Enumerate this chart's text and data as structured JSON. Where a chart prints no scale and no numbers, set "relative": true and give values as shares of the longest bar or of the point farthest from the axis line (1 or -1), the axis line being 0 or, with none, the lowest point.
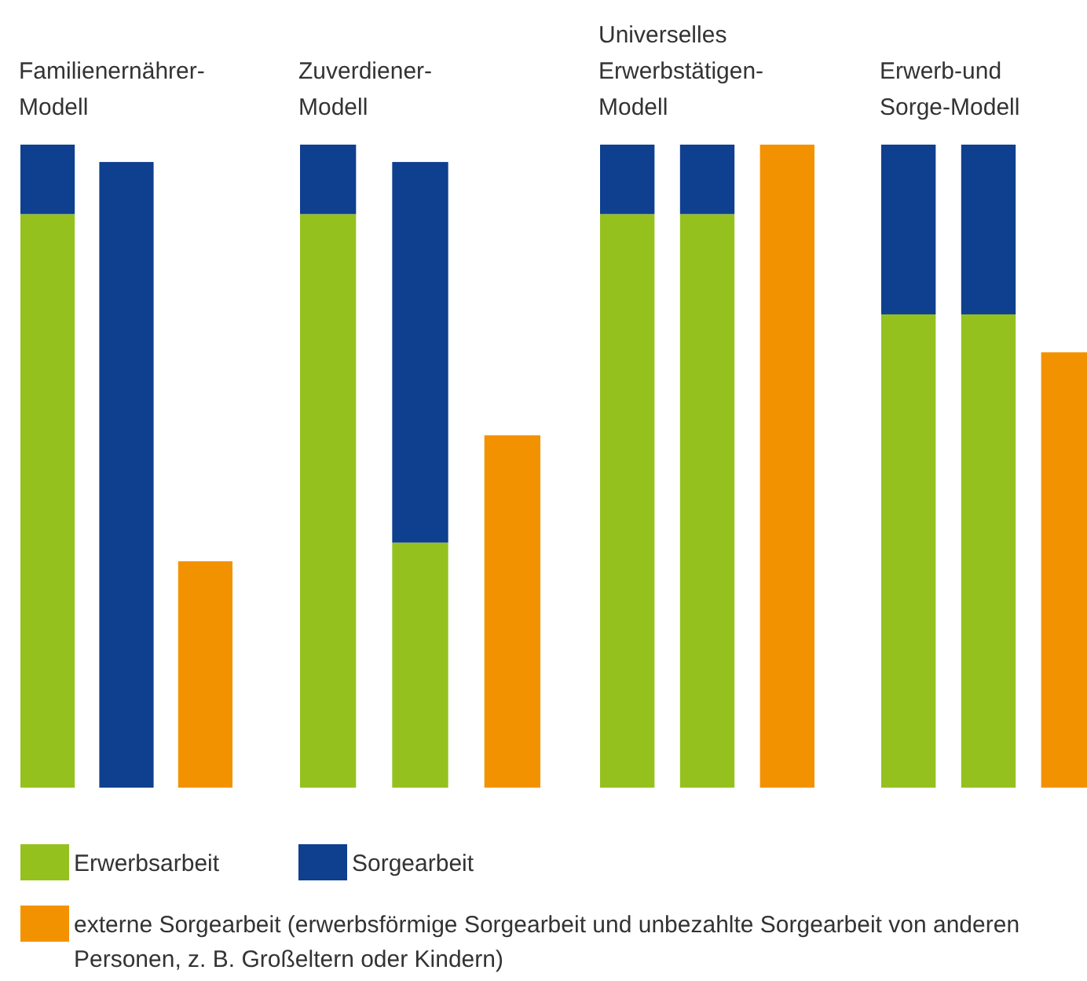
{
  "chart_data": [
    {
      "type": "bar",
      "title": "Familienernährer-\nModell",
      "categories": [
        null,
        null,
        null
      ],
      "stacked": true,
      "relative": true,
      "series": [
        {
          "color": "#95c11f",
          "values": [
            0.892,
            null,
            null
          ]
        },
        {
          "color": "#0f3f8f",
          "values": [
            0.108,
            0.973,
            null
          ]
        },
        {
          "color": "#f39200",
          "values": [
            null,
            null,
            0.352
          ]
        }
      ]
    },
    {
      "type": "bar",
      "title": "Zuverdiener-\nModell",
      "categories": [
        null,
        null,
        null
      ],
      "stacked": true,
      "relative": true,
      "series": [
        {
          "color": "#95c11f",
          "values": [
            0.892,
            0.381,
            null
          ]
        },
        {
          "color": "#0f3f8f",
          "values": [
            0.108,
            0.592,
            null
          ]
        },
        {
          "color": "#f39200",
          "values": [
            null,
            null,
            0.548
          ]
        }
      ]
    },
    {
      "type": "bar",
      "title": "Universelles\nErwerbstätigen-\nModell",
      "categories": [
        null,
        null,
        null
      ],
      "stacked": true,
      "relative": true,
      "series": [
        {
          "color": "#95c11f",
          "values": [
            0.892,
            0.892,
            null
          ]
        },
        {
          "color": "#0f3f8f",
          "values": [
            0.108,
            0.108,
            null
          ]
        },
        {
          "color": "#f39200",
          "values": [
            null,
            null,
            1
          ]
        }
      ]
    },
    {
      "type": "bar",
      "title": "Erwerb-und\nSorge-Modell",
      "categories": [
        null,
        null,
        null
      ],
      "stacked": true,
      "relative": true,
      "legend": "bottom",
      "series": [
        {
          "name": "Erwerbsarbeit",
          "color": "#95c11f",
          "values": [
            0.736,
            0.736,
            null
          ]
        },
        {
          "name": "Sorgearbeit",
          "color": "#0f3f8f",
          "values": [
            0.264,
            0.264,
            null
          ]
        },
        {
          "name": "externe Sorgearbeit (erwerbsförmige Sorgearbeit und unbezahlte Sorgearbeit von anderen Personen, z. B. Großeltern oder Kindern)",
          "color": "#f39200",
          "values": [
            null,
            null,
            0.677
          ]
        }
      ]
    }
  ]
}
